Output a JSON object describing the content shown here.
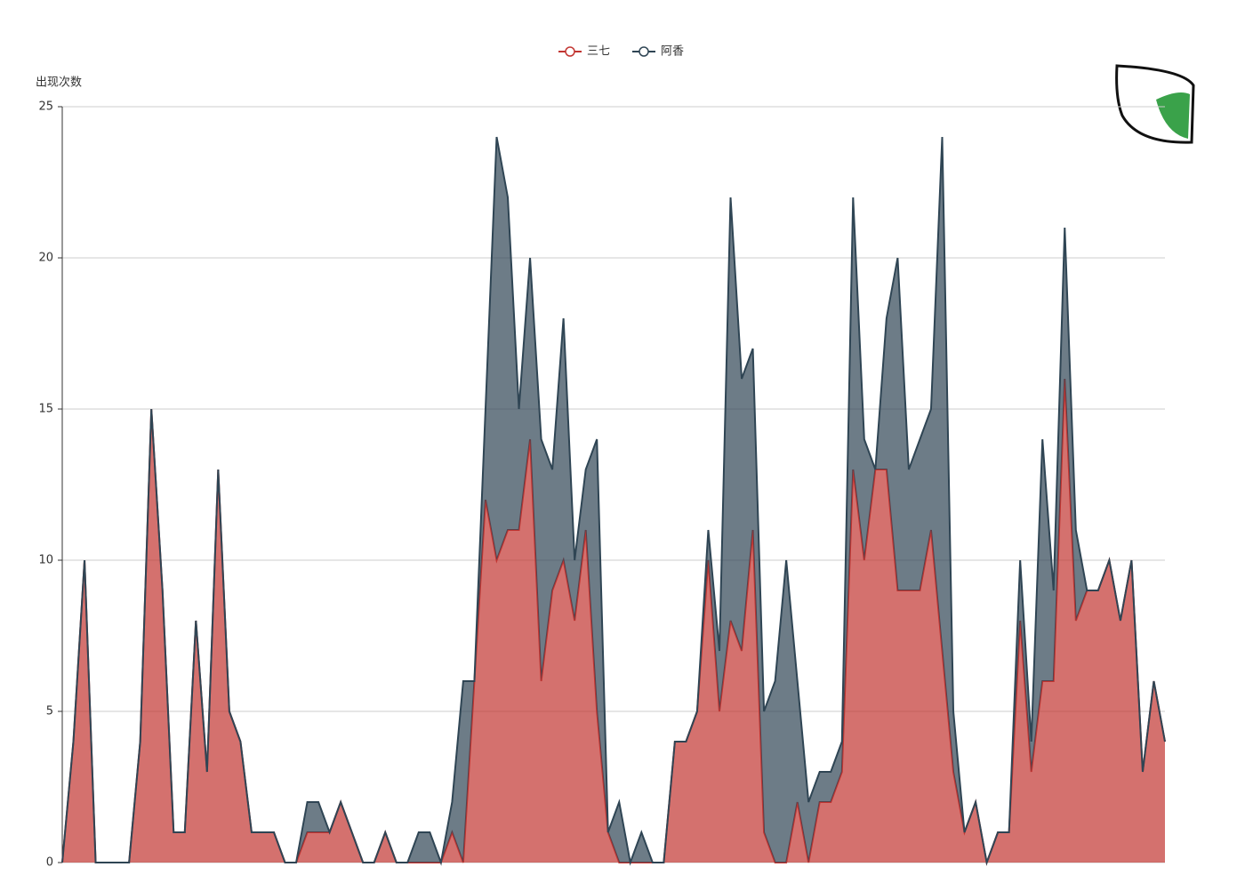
{
  "chart_data": {
    "type": "stacked_area",
    "y_label": "出现次数",
    "categories": [
      null,
      null,
      null,
      null,
      null,
      null,
      null,
      null,
      null,
      null,
      null,
      null,
      null,
      null,
      null,
      null,
      null,
      null,
      null,
      null,
      null,
      null,
      null,
      null,
      null,
      null,
      null,
      null,
      null,
      null,
      null,
      null,
      null,
      null,
      null,
      null,
      null,
      null,
      null,
      null,
      null,
      null,
      null,
      null,
      null,
      null,
      null,
      null,
      null,
      null,
      null,
      null,
      null,
      null,
      null,
      null,
      null,
      null,
      null,
      null,
      null,
      null,
      null,
      null,
      null,
      null,
      null,
      null,
      null,
      null,
      null,
      null,
      null,
      null,
      null,
      null,
      null,
      null,
      null,
      null,
      null,
      null,
      null,
      null,
      null,
      null,
      null,
      null,
      null,
      null,
      null,
      null,
      null,
      null,
      null,
      null,
      null,
      null,
      null,
      null
    ],
    "series": [
      {
        "name": "三七",
        "color": "#c23531",
        "values": [
          0,
          4,
          10,
          0,
          0,
          0,
          0,
          4,
          15,
          9,
          1,
          1,
          8,
          3,
          13,
          5,
          4,
          1,
          1,
          1,
          0,
          0,
          1,
          1,
          1,
          2,
          1,
          0,
          0,
          1,
          0,
          0,
          0,
          0,
          0,
          1,
          0,
          6,
          12,
          10,
          11,
          11,
          14,
          6,
          9,
          10,
          8,
          11,
          5,
          1,
          0,
          0,
          0,
          0,
          0,
          4,
          4,
          5,
          10,
          5,
          8,
          7,
          11,
          1,
          0,
          0,
          2,
          0,
          2,
          2,
          3,
          13,
          10,
          13,
          13,
          9,
          9,
          9,
          11,
          7,
          3,
          1,
          2,
          0,
          1,
          1,
          8,
          3,
          6,
          6,
          16,
          8,
          9,
          9,
          10,
          8,
          10,
          3,
          6,
          4
        ]
      },
      {
        "name": "阿香",
        "color": "#2f4554",
        "values": [
          0,
          0,
          0,
          0,
          0,
          0,
          0,
          0,
          0,
          0,
          0,
          0,
          0,
          0,
          0,
          0,
          0,
          0,
          0,
          0,
          0,
          0,
          1,
          1,
          0,
          0,
          0,
          0,
          0,
          0,
          0,
          0,
          1,
          1,
          0,
          1,
          6,
          0,
          3,
          14,
          11,
          4,
          6,
          8,
          4,
          8,
          2,
          2,
          9,
          0,
          2,
          0,
          1,
          0,
          0,
          0,
          0,
          0,
          1,
          2,
          14,
          9,
          6,
          4,
          6,
          10,
          4,
          2,
          1,
          1,
          1,
          9,
          4,
          0,
          5,
          11,
          4,
          5,
          4,
          17,
          2,
          0,
          0,
          0,
          0,
          0,
          2,
          1,
          8,
          3,
          5,
          3,
          0,
          0,
          0,
          0,
          0,
          0,
          0,
          0
        ]
      }
    ],
    "ylim": [
      0,
      25
    ],
    "yticks": [
      0,
      5,
      10,
      15,
      20,
      25
    ],
    "grid": true,
    "legend": "top"
  }
}
